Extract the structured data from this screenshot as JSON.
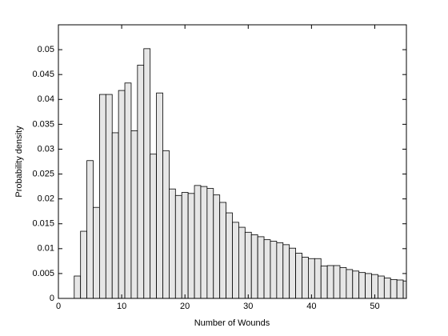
{
  "chart_data": {
    "type": "histogram",
    "x_label": "Number of Wounds",
    "y_label": "Probability density",
    "bins": [
      2.5,
      3.5,
      4.5,
      5.5,
      6.5,
      7.5,
      8.5,
      9.5,
      10.5,
      11.5,
      12.5,
      13.5,
      14.5,
      15.5,
      16.5,
      17.5,
      18.5,
      19.5,
      20.5,
      21.5,
      22.5,
      23.5,
      24.5,
      25.5,
      26.5,
      27.5,
      28.5,
      29.5,
      30.5,
      31.5,
      32.5,
      33.5,
      34.5,
      35.5,
      36.5,
      37.5,
      38.5,
      39.5,
      40.5,
      41.5,
      42.5,
      43.5,
      44.5,
      45.5,
      46.5,
      47.5,
      48.5,
      49.5,
      50.5,
      51.5,
      52.5,
      53.5,
      54.5,
      55.5
    ],
    "values": [
      0.0045,
      0.0135,
      0.0277,
      0.0183,
      0.041,
      0.041,
      0.0333,
      0.0418,
      0.0433,
      0.0337,
      0.0469,
      0.0502,
      0.029,
      0.0413,
      0.0297,
      0.022,
      0.0207,
      0.0213,
      0.0211,
      0.0227,
      0.0225,
      0.0221,
      0.0208,
      0.0193,
      0.0172,
      0.0153,
      0.0143,
      0.0133,
      0.0128,
      0.0124,
      0.0118,
      0.0115,
      0.0112,
      0.0108,
      0.0101,
      0.0091,
      0.0083,
      0.008,
      0.008,
      0.0065,
      0.0066,
      0.0066,
      0.0062,
      0.0058,
      0.0055,
      0.0052,
      0.005,
      0.0048,
      0.0045,
      0.0041,
      0.0038,
      0.0037,
      0.0035
    ],
    "color": "#e6e6e6",
    "xlim": [
      0,
      55
    ],
    "xticks": [
      0,
      10,
      20,
      30,
      40,
      50
    ],
    "ylim": [
      0,
      0.055
    ],
    "yticks": [
      0,
      0.005,
      0.01,
      0.015,
      0.02,
      0.025,
      0.03,
      0.035,
      0.04,
      0.045,
      0.05
    ]
  }
}
